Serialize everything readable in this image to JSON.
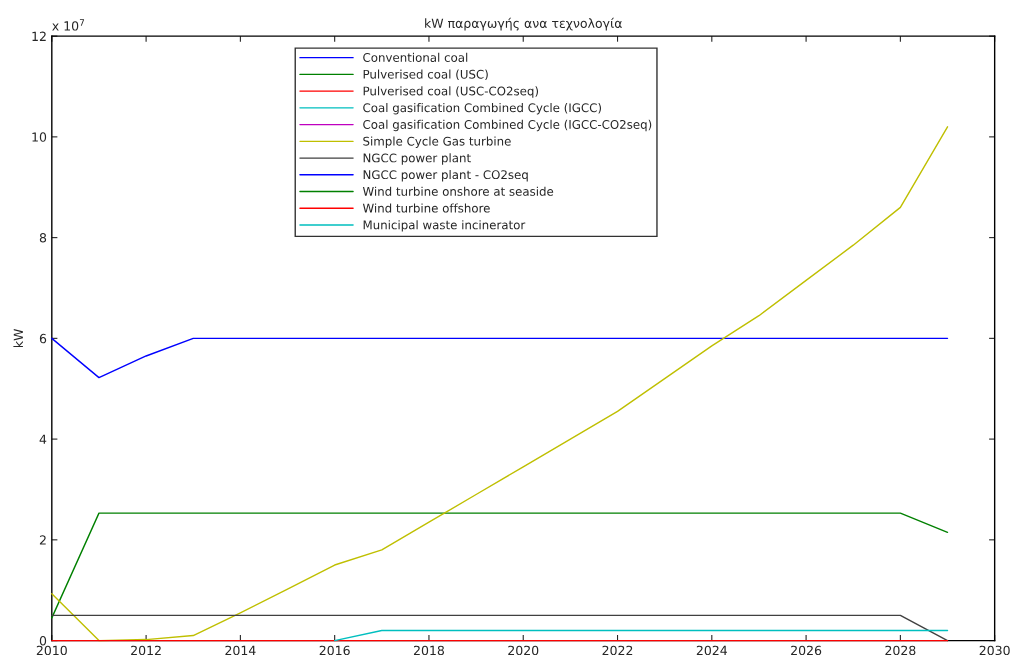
{
  "chart_data": {
    "type": "line",
    "title": "kW παραγωγής ανα τεχνολογία",
    "ylabel": "kW",
    "annotations": [
      "x 10$^{7}$"
    ],
    "x": [
      2010,
      2011,
      2012,
      2013,
      2014,
      2015,
      2016,
      2017,
      2018,
      2019,
      2020,
      2021,
      2022,
      2023,
      2024,
      2025,
      2026,
      2027,
      2028,
      2029
    ],
    "series": [
      {
        "name": "Conventional coal",
        "color": "#0000ff",
        "values": [
          6,
          5.22,
          5.65,
          6,
          6,
          6,
          6,
          6,
          6,
          6,
          6,
          6,
          6,
          6,
          6,
          6,
          6,
          6,
          6,
          6
        ]
      },
      {
        "name": "Pulverised coal (USC)",
        "color": "#008000",
        "values": [
          0.45,
          2.53,
          2.53,
          2.53,
          2.53,
          2.53,
          2.53,
          2.53,
          2.53,
          2.53,
          2.53,
          2.53,
          2.53,
          2.53,
          2.53,
          2.53,
          2.53,
          2.53,
          2.53,
          2.15
        ]
      },
      {
        "name": "Pulverised coal (USC-CO2seq)",
        "color": "#ff0000",
        "values": [
          null,
          null,
          null,
          null,
          null,
          null,
          null,
          null,
          null,
          null,
          null,
          null,
          null,
          null,
          null,
          null,
          null,
          null,
          null,
          null
        ]
      },
      {
        "name": "Coal gasification Combined Cycle (IGCC)",
        "color": "#00bfbf",
        "values": [
          null,
          null,
          null,
          null,
          null,
          null,
          null,
          null,
          null,
          null,
          null,
          null,
          null,
          null,
          null,
          null,
          null,
          null,
          null,
          null
        ]
      },
      {
        "name": "Coal gasification Combined Cycle (IGCC-CO2seq)",
        "color": "#bf00bf",
        "values": [
          null,
          null,
          null,
          null,
          null,
          null,
          null,
          null,
          null,
          null,
          null,
          null,
          null,
          null,
          null,
          null,
          null,
          null,
          null,
          null
        ]
      },
      {
        "name": "Simple Cycle Gas turbine",
        "color": "#bfbf00",
        "values": [
          0.93,
          0,
          0.02,
          0.1,
          0.55,
          1.02,
          1.5,
          1.8,
          2.35,
          2.9,
          3.45,
          4.0,
          4.55,
          5.2,
          5.85,
          6.45,
          7.15,
          7.85,
          8.6,
          10.2
        ]
      },
      {
        "name": "NGCC power plant",
        "color": "#404040",
        "values": [
          0.5,
          0.5,
          0.5,
          0.5,
          0.5,
          0.5,
          0.5,
          0.5,
          0.5,
          0.5,
          0.5,
          0.5,
          0.5,
          0.5,
          0.5,
          0.5,
          0.5,
          0.5,
          0.5,
          0
        ]
      },
      {
        "name": "NGCC power plant - CO2seq",
        "color": "#0000ff",
        "values": [
          null,
          null,
          null,
          null,
          null,
          null,
          null,
          null,
          null,
          null,
          null,
          null,
          null,
          null,
          null,
          null,
          null,
          null,
          null,
          null
        ]
      },
      {
        "name": "Wind turbine onshore at seaside",
        "color": "#008000",
        "values": [
          null,
          null,
          null,
          null,
          null,
          null,
          null,
          null,
          null,
          null,
          null,
          null,
          null,
          null,
          null,
          null,
          null,
          null,
          null,
          null
        ]
      },
      {
        "name": "Wind turbine offshore",
        "color": "#ff0000",
        "values": [
          0,
          0,
          0,
          0,
          0,
          0,
          0,
          0,
          0,
          0,
          0,
          0,
          0,
          0,
          0,
          0,
          0,
          0,
          0,
          0
        ]
      },
      {
        "name": "Municipal waste incinerator",
        "color": "#00bfbf",
        "values": [
          null,
          null,
          null,
          null,
          null,
          null,
          0,
          0.2,
          0.2,
          0.2,
          0.2,
          0.2,
          0.2,
          0.2,
          0.2,
          0.2,
          0.2,
          0.2,
          0.2,
          0.2
        ]
      }
    ],
    "xlim": [
      2010,
      2030
    ],
    "xticks": [
      2010,
      2012,
      2014,
      2016,
      2018,
      2020,
      2022,
      2024,
      2026,
      2028,
      2030
    ],
    "ylim": [
      0,
      12
    ],
    "yticks": [
      0,
      2,
      4,
      6,
      8,
      10,
      12
    ],
    "grid": false,
    "legend": "top",
    "marker": "none",
    "line_style": "solid"
  }
}
